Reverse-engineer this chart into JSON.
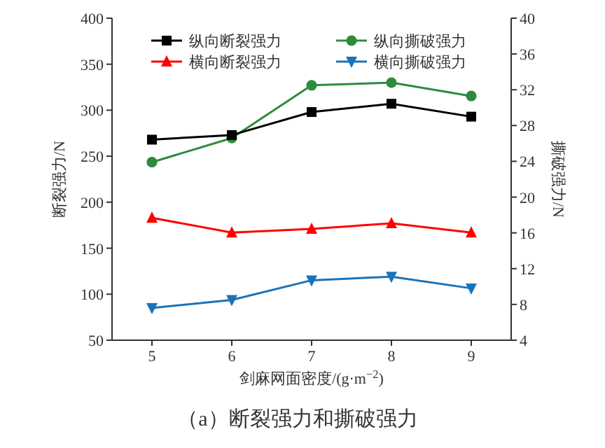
{
  "chart_data": {
    "type": "line",
    "title": "（a）断裂强力和撕破强力",
    "xlabel": "剑麻网面密度/(g·m$^{−2}$)",
    "ylabel": "断裂强力/N",
    "y2label": "撕破强力/N",
    "x": [
      5,
      6,
      7,
      8,
      9
    ],
    "xlim": [
      4.5,
      9.5
    ],
    "xticks": [
      5,
      6,
      7,
      8,
      9
    ],
    "ylim": [
      50,
      400
    ],
    "yticks": [
      50,
      100,
      150,
      200,
      250,
      300,
      350,
      400
    ],
    "y2lim": [
      4,
      40
    ],
    "y2ticks": [
      4,
      8,
      12,
      16,
      20,
      24,
      28,
      32,
      36,
      40
    ],
    "legend": "top",
    "grid": false,
    "line_style": "solid",
    "series": [
      {
        "name": "纵向断裂强力",
        "color": "#000000",
        "marker": "square",
        "values": [
          268,
          273,
          298,
          307,
          293
        ]
      },
      {
        "name": "横向断裂强力",
        "color": "#ff0000",
        "marker": "triangle",
        "values": [
          183,
          167,
          171,
          177,
          167
        ]
      },
      {
        "name": "纵向撕破强力",
        "color": "#2e8b3e",
        "marker": "circle",
        "axis": "y2",
        "values": [
          23.9,
          26.6,
          32.5,
          32.8,
          31.3
        ]
      },
      {
        "name": "横向撕破强力",
        "color": "#1a73b8",
        "marker": "triangle-down",
        "axis": "y2",
        "values": [
          7.6,
          8.5,
          10.7,
          11.1,
          9.8
        ]
      }
    ]
  }
}
